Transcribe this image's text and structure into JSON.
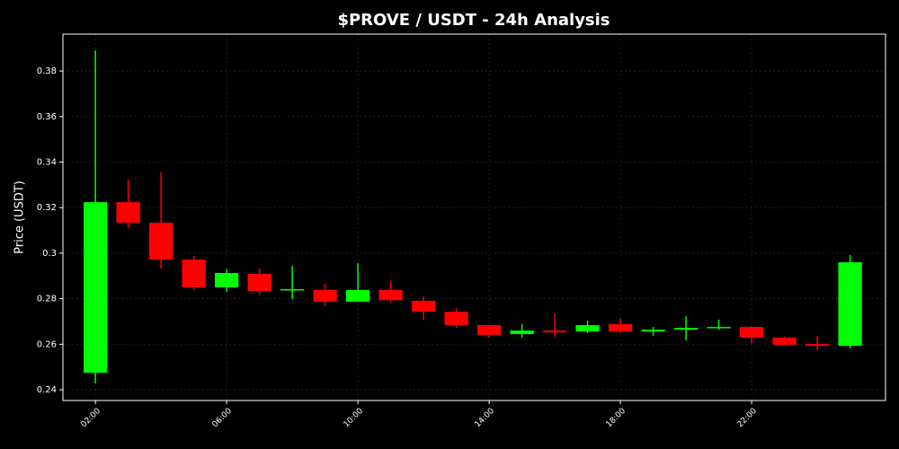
{
  "chart_data": {
    "type": "candlestick",
    "title": "$PROVE / USDT - 24h Analysis",
    "y_label": "Price (USDT)",
    "x": [
      2,
      3,
      4,
      5,
      6,
      7,
      8,
      9,
      10,
      11,
      12,
      13,
      14,
      15,
      16,
      17,
      18,
      19,
      20,
      21,
      22,
      23,
      24,
      25
    ],
    "open": [
      0.2475,
      0.3224,
      0.3134,
      0.2972,
      0.285,
      0.2909,
      0.2838,
      0.2838,
      0.2787,
      0.2838,
      0.2791,
      0.2743,
      0.2684,
      0.2645,
      0.266,
      0.2656,
      0.2688,
      0.2656,
      0.2664,
      0.2672,
      0.2676,
      0.2629,
      0.2601,
      0.2593
    ],
    "high": [
      0.389,
      0.3323,
      0.3355,
      0.2988,
      0.2929,
      0.2933,
      0.2944,
      0.2865,
      0.2956,
      0.2877,
      0.281,
      0.2759,
      0.2684,
      0.2688,
      0.2735,
      0.2704,
      0.2712,
      0.2676,
      0.2723,
      0.2708,
      0.268,
      0.2633,
      0.2637,
      0.2992
    ],
    "low": [
      0.2428,
      0.311,
      0.2933,
      0.2838,
      0.283,
      0.2818,
      0.2798,
      0.2767,
      0.2787,
      0.2783,
      0.2708,
      0.2672,
      0.2629,
      0.2629,
      0.2633,
      0.2649,
      0.2652,
      0.2637,
      0.2617,
      0.2664,
      0.2605,
      0.2597,
      0.2574,
      0.2581
    ],
    "close": [
      0.3224,
      0.3134,
      0.2972,
      0.285,
      0.2913,
      0.2834,
      0.2842,
      0.2787,
      0.2838,
      0.2794,
      0.2743,
      0.2684,
      0.2641,
      0.266,
      0.2652,
      0.2684,
      0.2656,
      0.2664,
      0.2672,
      0.2676,
      0.2629,
      0.2597,
      0.2593,
      0.296
    ],
    "up_color": "#00ff00",
    "down_color": "#ff0000",
    "xlim": [
      1.01,
      26.08
    ],
    "xticks": [
      {
        "value": 2,
        "label": "02:00"
      },
      {
        "value": 6,
        "label": "06:00"
      },
      {
        "value": 10,
        "label": "10:00"
      },
      {
        "value": 14,
        "label": "14:00"
      },
      {
        "value": 18,
        "label": "18:00"
      },
      {
        "value": 22,
        "label": "22:00"
      }
    ],
    "ylim": [
      0.2353,
      0.3962
    ],
    "yticks": [
      0.24,
      0.26,
      0.28,
      0.3,
      0.32,
      0.34,
      0.36,
      0.38
    ],
    "grid": true
  }
}
